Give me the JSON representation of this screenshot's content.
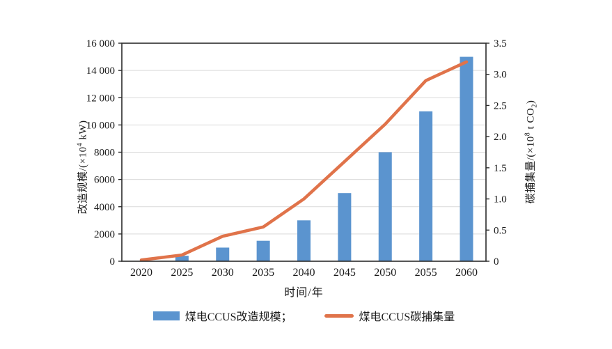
{
  "chart_data": {
    "type": "bar+line",
    "title": "",
    "categories": [
      "2020",
      "2025",
      "2030",
      "2035",
      "2040",
      "2045",
      "2050",
      "2055",
      "2060"
    ],
    "series": [
      {
        "name": "煤电CCUS改造规模",
        "type": "bar",
        "axis": "left",
        "values": [
          0,
          400,
          1000,
          1500,
          3000,
          5000,
          8000,
          11000,
          15000
        ],
        "color": "#5b94cf"
      },
      {
        "name": "煤电CCUS碳捕集量",
        "type": "line",
        "axis": "right",
        "values": [
          0.02,
          0.1,
          0.4,
          0.55,
          1.0,
          1.6,
          2.2,
          2.9,
          3.2
        ],
        "color": "#e0734a"
      }
    ],
    "xlabel": "时间/年",
    "ylabel_left": "改造规模/(×10^4 kW)",
    "ylabel_right": "碳捕集量/(×10^8 t CO_2)",
    "ylim_left": [
      0,
      16000
    ],
    "ytick_labels_left": [
      "0",
      "2000",
      "4000",
      "6000",
      "8000",
      "10 000",
      "12 000",
      "14 000",
      "16 000"
    ],
    "ylim_right": [
      0,
      3.5
    ],
    "ytick_labels_right": [
      "0",
      "0.5",
      "1.0",
      "1.5",
      "2.0",
      "2.5",
      "3.0",
      "3.5"
    ],
    "grid": "horizontal",
    "gridline_color": "#d9d9d9",
    "frame_color": "#2b2b2b",
    "legend_position": "bottom"
  },
  "axis_labels": {
    "x": "时间/年",
    "y_left": {
      "pre": "改造规模/(×10",
      "sup": "4",
      "post": " kW)"
    },
    "y_right": {
      "pre": "碳捕集量/(×10",
      "sup": "8",
      "mid": " t CO",
      "sub": "2",
      "post": ")"
    }
  },
  "legend": {
    "items": [
      {
        "label": "煤电CCUS改造规模；",
        "swatch": "bar"
      },
      {
        "label": "煤电CCUS碳捕集量",
        "swatch": "line"
      }
    ]
  }
}
